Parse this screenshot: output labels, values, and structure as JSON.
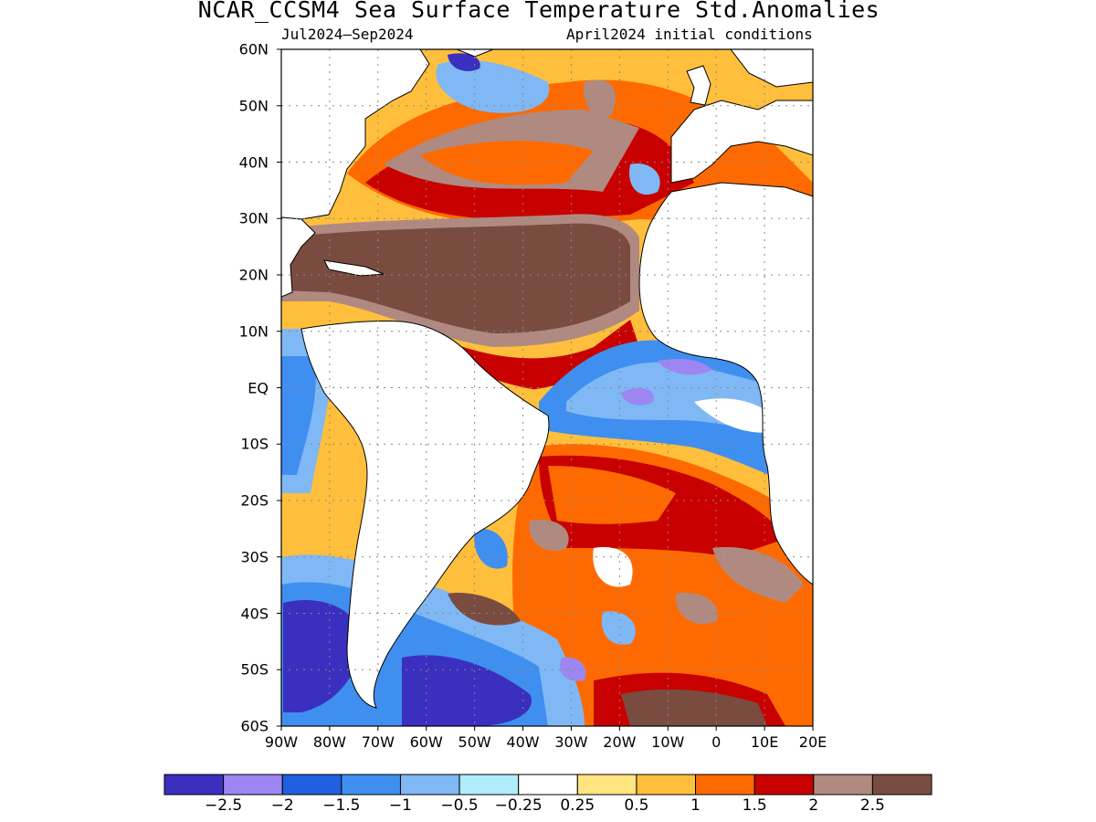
{
  "title": "NCAR_CCSM4 Sea Surface Temperature Std.Anomalies",
  "subtitle_left": "Jul2024—Sep2024",
  "subtitle_right": "April2024 initial conditions",
  "y_axis": {
    "ticks": [
      "60N",
      "50N",
      "40N",
      "30N",
      "20N",
      "10N",
      "EQ",
      "10S",
      "20S",
      "30S",
      "40S",
      "50S",
      "60S"
    ],
    "range": [
      60,
      -60
    ]
  },
  "x_axis": {
    "ticks": [
      "90W",
      "80W",
      "70W",
      "60W",
      "50W",
      "40W",
      "30W",
      "20W",
      "10W",
      "0",
      "10E",
      "20E"
    ],
    "range": [
      -90,
      20
    ]
  },
  "colorbar": {
    "colors": [
      "#3a2fbf",
      "#9d86f2",
      "#2060e0",
      "#3f8ff0",
      "#7fb8f5",
      "#b0ecfa",
      "#ffffff",
      "#ffe480",
      "#ffbf3c",
      "#ff6a00",
      "#c80000",
      "#b08a80",
      "#7a4c40"
    ],
    "labels": [
      "−2.5",
      "−2",
      "−1.5",
      "−1",
      "−0.5",
      "−0.25",
      "0.25",
      "0.5",
      "1",
      "1.5",
      "2",
      "2.5"
    ]
  }
}
